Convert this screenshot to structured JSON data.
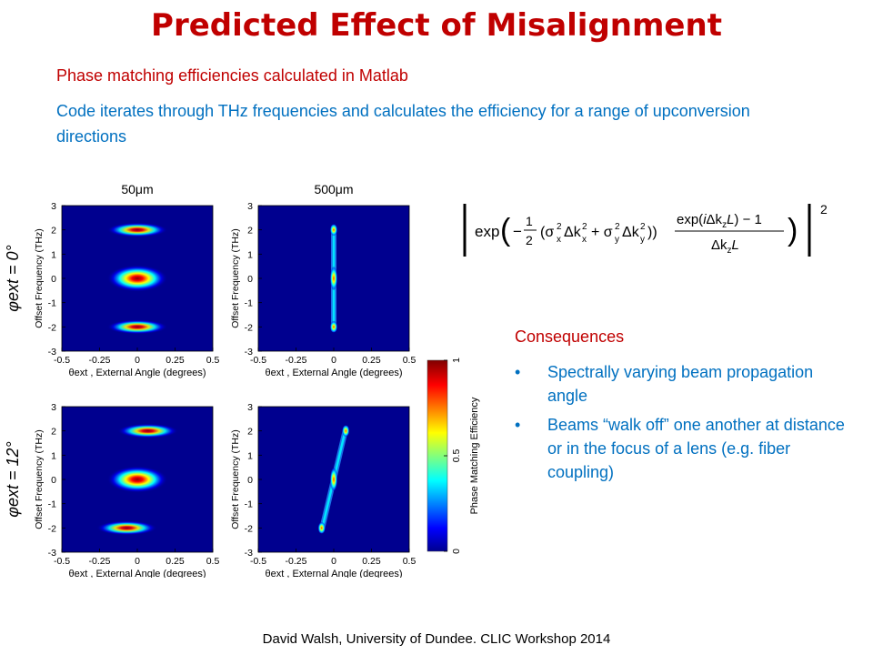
{
  "slide": {
    "title": "Predicted Effect of Misalignment",
    "line1": "Phase matching efficiencies calculated in Matlab",
    "line2": "Code iterates through THz frequencies and calculates the efficiency for a range of upconversion directions",
    "consequences_title": "Consequences",
    "bullets": [
      "Spectrally varying beam propagation angle",
      "Beams “walk off” one another at distance or in the focus of a lens (e.g. fiber coupling)"
    ],
    "formula_exponent": "2",
    "footer": "David Walsh, University of Dundee. CLIC Workshop 2014"
  },
  "chart_data": [
    {
      "type": "heatmap",
      "column_title": "50μm",
      "row_label": "φext = 0°",
      "xlabel": "θext , External Angle (degrees)",
      "ylabel": "Offset Frequency (THz)",
      "xlim": [
        -0.5,
        0.5
      ],
      "ylim": [
        -3,
        3
      ],
      "xticks": [
        "-0.5",
        "-0.25",
        "0",
        "0.25",
        "0.5"
      ],
      "yticks": [
        "3",
        "2",
        "1",
        "0",
        "-1",
        "-2",
        "-3"
      ],
      "blobs": [
        {
          "x": 0,
          "y": 2,
          "width": 0.2,
          "height": 0.3,
          "peak": 0.75
        },
        {
          "x": 0,
          "y": 0,
          "width": 0.2,
          "height": 0.55,
          "peak": 1.0
        },
        {
          "x": 0,
          "y": -2,
          "width": 0.2,
          "height": 0.3,
          "peak": 0.75
        }
      ]
    },
    {
      "type": "heatmap",
      "column_title": "500μm",
      "xlabel": "θext , External Angle (degrees)",
      "ylabel": "Offset Frequency (THz)",
      "xlim": [
        -0.5,
        0.5
      ],
      "ylim": [
        -3,
        3
      ],
      "xticks": [
        "-0.5",
        "-0.25",
        "0",
        "0.25",
        "0.5"
      ],
      "yticks": [
        "3",
        "2",
        "1",
        "0",
        "-1",
        "-2",
        "-3"
      ],
      "blobs": [
        {
          "x": 0,
          "y": 2,
          "width": 0.025,
          "height": 0.25,
          "peak": 0.9
        },
        {
          "x": 0,
          "y": 0,
          "width": 0.025,
          "height": 0.5,
          "peak": 1.0
        },
        {
          "x": 0,
          "y": -2,
          "width": 0.025,
          "height": 0.25,
          "peak": 0.9
        }
      ],
      "ridges": [
        {
          "x1": 0,
          "y1": -2.1,
          "x2": 0,
          "y2": 2.1
        }
      ]
    },
    {
      "type": "heatmap",
      "row_label": "φext = 12°",
      "xlabel": "θext , External Angle (degrees)",
      "ylabel": "Offset Frequency (THz)",
      "xlim": [
        -0.5,
        0.5
      ],
      "ylim": [
        -3,
        3
      ],
      "xticks": [
        "-0.5",
        "-0.25",
        "0",
        "0.25",
        "0.5"
      ],
      "yticks": [
        "3",
        "2",
        "1",
        "0",
        "-1",
        "-2",
        "-3"
      ],
      "blobs": [
        {
          "x": 0.07,
          "y": 2,
          "width": 0.2,
          "height": 0.3,
          "peak": 0.75
        },
        {
          "x": 0,
          "y": 0,
          "width": 0.2,
          "height": 0.55,
          "peak": 1.0
        },
        {
          "x": -0.07,
          "y": -2,
          "width": 0.2,
          "height": 0.3,
          "peak": 0.75
        }
      ]
    },
    {
      "type": "heatmap",
      "xlabel": "θext , External Angle (degrees)",
      "ylabel": "Offset Frequency (THz)",
      "xlim": [
        -0.5,
        0.5
      ],
      "ylim": [
        -3,
        3
      ],
      "xticks": [
        "-0.5",
        "-0.25",
        "0",
        "0.25",
        "0.5"
      ],
      "yticks": [
        "3",
        "2",
        "1",
        "0",
        "-1",
        "-2",
        "-3"
      ],
      "blobs": [
        {
          "x": 0.08,
          "y": 2,
          "width": 0.025,
          "height": 0.25,
          "peak": 0.9
        },
        {
          "x": 0,
          "y": 0,
          "width": 0.025,
          "height": 0.5,
          "peak": 1.0
        },
        {
          "x": -0.08,
          "y": -2,
          "width": 0.025,
          "height": 0.25,
          "peak": 0.9
        }
      ],
      "ridges": [
        {
          "x1": -0.08,
          "y1": -2.1,
          "x2": 0.08,
          "y2": 2.1
        }
      ]
    }
  ],
  "colorbar": {
    "label": "Phase Matching Efficiency",
    "range": [
      0,
      1
    ],
    "ticks": [
      "0",
      "0.5",
      "1"
    ],
    "colormap": [
      "#00008f",
      "#0000ff",
      "#00ffff",
      "#ffff00",
      "#ff0000",
      "#800000"
    ]
  }
}
